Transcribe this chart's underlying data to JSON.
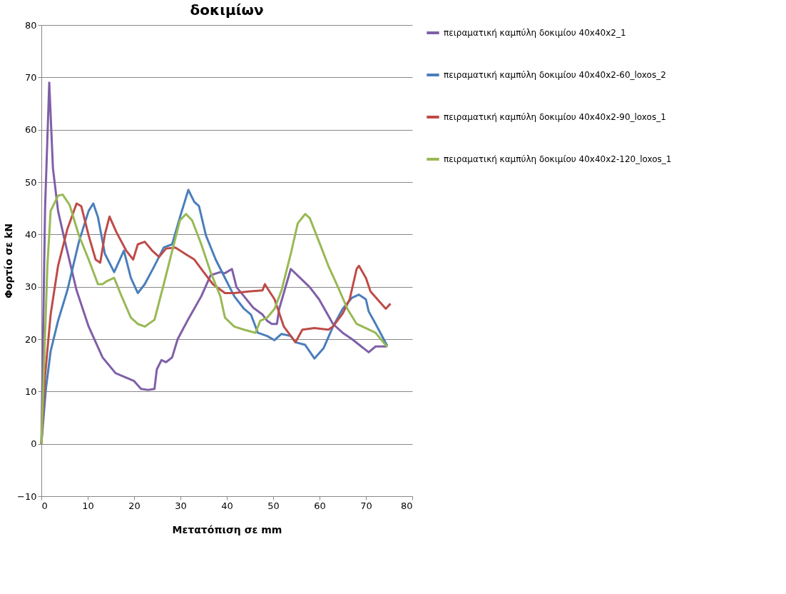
{
  "chart_data": {
    "type": "line",
    "title": "δοκιμίων",
    "xlabel": "Μετατόπιση σε mm",
    "ylabel": "Φορτίο σε kN",
    "xlim": [
      0,
      80
    ],
    "xticks": [
      0,
      10,
      20,
      30,
      40,
      50,
      60,
      70,
      80
    ],
    "ylim": [
      -10,
      80
    ],
    "yticks": [
      -10,
      0,
      10,
      20,
      30,
      40,
      50,
      60,
      70,
      80
    ],
    "grid": "y",
    "legend": "right",
    "marker": "none",
    "line_style": "solid",
    "series": [
      {
        "name": "πειραματική καμπύλη δοκιμίου 40x40x2_1",
        "color": "#7f5fa8",
        "x": [
          0,
          0.8,
          1.7,
          2.5,
          3.6,
          5.1,
          7.6,
          10.2,
          13.2,
          16,
          20,
          21.5,
          23,
          24.4,
          24.9,
          25.9,
          26.9,
          28.2,
          29.4,
          31.5,
          34.5,
          36.5,
          38.6,
          39.6,
          41.1,
          42.1,
          43.7,
          45.7,
          47.7,
          48.7,
          49.7,
          50.8,
          51.3,
          53.8,
          55.8,
          57.9,
          59.9,
          62.9,
          65,
          67,
          69,
          70.6,
          72.1,
          74.6
        ],
        "values": [
          0,
          45,
          69,
          52.6,
          44.5,
          38.6,
          29.3,
          22.4,
          16.5,
          13.5,
          12,
          10.5,
          10.3,
          10.5,
          14.2,
          16,
          15.6,
          16.5,
          20,
          23.5,
          28.2,
          32.2,
          32.8,
          32.6,
          33.4,
          29.9,
          28.2,
          26,
          24.7,
          23.5,
          22.9,
          22.9,
          25.8,
          33.4,
          31.7,
          29.9,
          27.6,
          22.9,
          21.2,
          20,
          18.6,
          17.5,
          18.6,
          18.6
        ]
      },
      {
        "name": "πειραματική καμπύλη δοκιμίου 40x40x2-60_loxos_2",
        "color": "#4a7ebb",
        "x": [
          0,
          1,
          2,
          3.6,
          5.6,
          8.1,
          10.2,
          11.2,
          12.2,
          13.7,
          15.7,
          17.8,
          19.3,
          20.8,
          22.3,
          24.4,
          26.4,
          28.2,
          29.9,
          31.7,
          33,
          34,
          35.5,
          37.6,
          39.6,
          41.6,
          43.7,
          45.2,
          46.7,
          48.7,
          50.3,
          51.8,
          53.8,
          54.8,
          56.9,
          58.9,
          60.9,
          62.9,
          65,
          67,
          68.5,
          70,
          70.6,
          72.1,
          74.6
        ],
        "values": [
          0,
          10.7,
          17.7,
          23.5,
          29.3,
          38.6,
          44.5,
          45.9,
          43.3,
          36.3,
          32.8,
          36.9,
          31.7,
          28.8,
          30.5,
          34,
          37.5,
          38.1,
          43.3,
          48.5,
          46.2,
          45.4,
          39.8,
          35.2,
          31.7,
          28.2,
          25.8,
          24.7,
          21.2,
          20.6,
          19.8,
          21,
          20.6,
          19.4,
          18.9,
          16.3,
          18.3,
          22.4,
          25.8,
          27.9,
          28.5,
          27.6,
          25.3,
          22.9,
          18.7
        ]
      },
      {
        "name": "πειραματική καμπύλη δοκιμίου 40x40x2-90_loxos_1",
        "color": "#be4b48",
        "x": [
          0,
          0.8,
          2,
          3.6,
          5.6,
          7.6,
          8.6,
          10.2,
          11.7,
          12.7,
          13.7,
          14.7,
          16.2,
          18.3,
          19.8,
          20.8,
          22.3,
          23.9,
          25.4,
          26.9,
          28.9,
          31,
          33,
          35,
          37,
          39.6,
          41.6,
          44.7,
          47.7,
          48.2,
          49.2,
          50.3,
          52.3,
          54.8,
          56.3,
          58.9,
          61.9,
          62.9,
          65,
          66.5,
          68,
          68.5,
          70,
          71,
          73.1,
          74.3,
          75.3
        ],
        "values": [
          0,
          13,
          24.7,
          34,
          41,
          45.9,
          45.4,
          39.8,
          35.2,
          34.6,
          40,
          43.4,
          40.4,
          36.9,
          35.2,
          38.1,
          38.6,
          36.9,
          35.7,
          37.3,
          37.5,
          36.3,
          35.2,
          32.8,
          30.5,
          28.8,
          28.8,
          29.1,
          29.3,
          30.5,
          29.1,
          27.6,
          22.4,
          19.4,
          21.8,
          22.1,
          21.8,
          22.4,
          24.9,
          27.6,
          33.4,
          34,
          31.7,
          29.1,
          27,
          25.8,
          26.8
        ]
      },
      {
        "name": "πειραματική καμπύλη δοκιμίου 40x40x2-120_loxos_1",
        "color": "#98b954",
        "x": [
          0,
          0.5,
          1.3,
          2,
          3.6,
          4.6,
          6.1,
          8.1,
          10.2,
          12.2,
          13.2,
          14.2,
          15.7,
          17.3,
          19.3,
          20.8,
          22.3,
          24.4,
          26.4,
          28.4,
          29.9,
          31.2,
          32.5,
          34.5,
          36.5,
          38.6,
          39.6,
          41.6,
          43.7,
          46.2,
          47.2,
          48.7,
          50.3,
          51.8,
          53.8,
          55.3,
          56.9,
          57.9,
          59.9,
          61.9,
          64,
          66,
          68,
          70,
          72.1,
          74.6
        ],
        "values": [
          0,
          13,
          34,
          44.5,
          47.4,
          47.6,
          45.6,
          39.8,
          35.2,
          30.5,
          30.5,
          31.1,
          31.7,
          28.2,
          24.1,
          22.9,
          22.4,
          23.7,
          30.5,
          37.5,
          42.7,
          43.9,
          42.7,
          38.1,
          32.8,
          28.2,
          24.1,
          22.4,
          21.8,
          21.2,
          23.5,
          24.1,
          25.8,
          29.3,
          36.3,
          42.1,
          43.9,
          43.1,
          38.6,
          34,
          29.9,
          25.8,
          22.9,
          22.1,
          21.2,
          18.5
        ]
      }
    ]
  }
}
